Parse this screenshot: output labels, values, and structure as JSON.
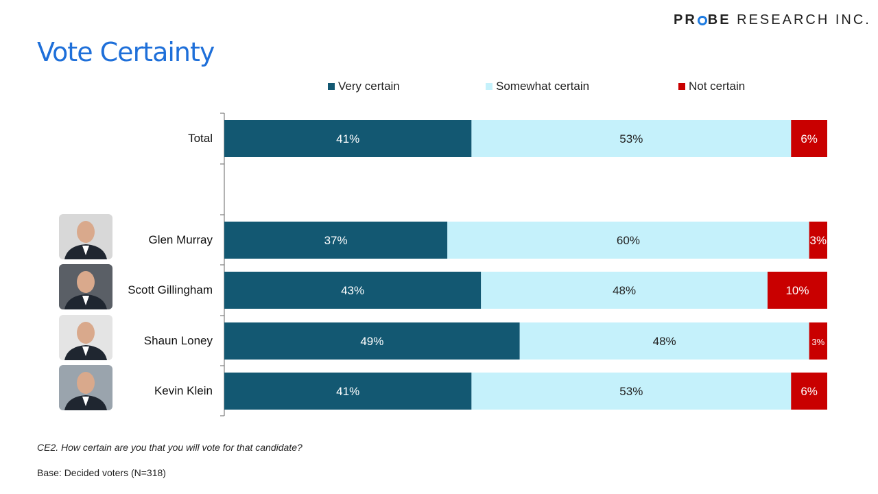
{
  "brand": {
    "logo_text_bold": "PR",
    "logo_text_bold2": "BE",
    "logo_text_rest": "RESEARCH INC."
  },
  "title": "Vote Certainty",
  "chart_data": {
    "type": "bar",
    "orientation": "horizontal",
    "stacked": true,
    "categories": [
      "Total",
      "Glen Murray",
      "Scott Gillingham",
      "Shaun Loney",
      "Kevin Klein"
    ],
    "series": [
      {
        "name": "Very certain",
        "color": "#135872",
        "values": [
          41,
          37,
          43,
          49,
          41
        ],
        "labels": [
          "41%",
          "37%",
          "43%",
          "49%",
          "41%"
        ]
      },
      {
        "name": "Somewhat certain",
        "color": "#c5f1fb",
        "values": [
          53,
          60,
          48,
          48,
          53
        ],
        "labels": [
          "53%",
          "60%",
          "48%",
          "48%",
          "53%"
        ]
      },
      {
        "name": "Not certain",
        "color": "#c90000",
        "values": [
          6,
          3,
          10,
          3,
          6
        ],
        "labels": [
          "6%",
          "3%",
          "10%",
          "3%",
          "6%"
        ]
      }
    ],
    "legend": "top",
    "grid": false
  },
  "footer": {
    "question": "CE2. How certain are you that you will vote for that candidate?",
    "base": "Base: Decided voters (N=318)"
  }
}
